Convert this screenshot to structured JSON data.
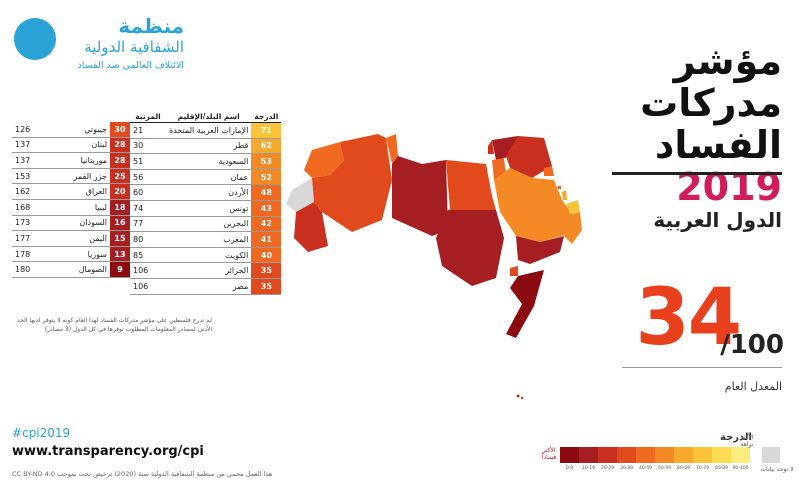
{
  "logo": {
    "line1": "منظمة",
    "line2": "الشفافية الدولية",
    "line3": "الائتلاف العالمي ضد الفساد"
  },
  "title": {
    "line1": "مؤشر",
    "line2": "مدركات",
    "line3_word": "الفساد",
    "year": "2019"
  },
  "region": "الدول العربية",
  "average": {
    "score": "34",
    "max": "/100",
    "label": "المعدل العام"
  },
  "table_right": {
    "headers": {
      "score": "الدرجة",
      "country": "اسم البلد/الإقليم",
      "rank": "المرتبة"
    },
    "rows": [
      {
        "score": "71",
        "country": "الإمارات العربية المتحدة",
        "rank": "21"
      },
      {
        "score": "62",
        "country": "قطر",
        "rank": "30"
      },
      {
        "score": "53",
        "country": "السعودية",
        "rank": "51"
      },
      {
        "score": "52",
        "country": "عمان",
        "rank": "56"
      },
      {
        "score": "48",
        "country": "الأردن",
        "rank": "60"
      },
      {
        "score": "43",
        "country": "تونس",
        "rank": "74"
      },
      {
        "score": "42",
        "country": "البحرين",
        "rank": "77"
      },
      {
        "score": "41",
        "country": "المغرب",
        "rank": "80"
      },
      {
        "score": "40",
        "country": "الكويت",
        "rank": "85"
      },
      {
        "score": "35",
        "country": "الجزائر",
        "rank": "106"
      },
      {
        "score": "35",
        "country": "مصر",
        "rank": "106"
      }
    ]
  },
  "table_left": {
    "rows": [
      {
        "score": "30",
        "country": "جيبوتي",
        "rank": "126"
      },
      {
        "score": "28",
        "country": "لبنان",
        "rank": "137"
      },
      {
        "score": "28",
        "country": "موريتانيا",
        "rank": "137"
      },
      {
        "score": "25",
        "country": "جزر القمر",
        "rank": "153"
      },
      {
        "score": "20",
        "country": "العراق",
        "rank": "162"
      },
      {
        "score": "18",
        "country": "ليبيا",
        "rank": "168"
      },
      {
        "score": "16",
        "country": "السودان",
        "rank": "173"
      },
      {
        "score": "15",
        "country": "اليمن",
        "rank": "177"
      },
      {
        "score": "13",
        "country": "سوريا",
        "rank": "178"
      },
      {
        "score": "9",
        "country": "الصومال",
        "rank": "180"
      }
    ]
  },
  "footnote": "لم تدرج فلسطين على مؤشر مدركات الفساد لهذا العام كونه لا يتوفر لديها الحد الأدنى لمصادر المعلومات المطلوب توفرها في كل الدول (3 مصادر)",
  "footer": {
    "hashtag": "#cpi2019",
    "url": "www.transparency.org/cpi",
    "license": "هذا العمل محمي من منظمة الشفافية الدولية سنة (2020) ترخيص تحت بموجب CC BY-ND 4.0"
  },
  "legend": {
    "title": "الدرجة",
    "most": "الأكثر فساداً",
    "least": "الأكثر نزاهة",
    "no_data": "لا توجد بيانات",
    "ranges": [
      "0-9",
      "10-19",
      "20-29",
      "30-39",
      "40-49",
      "50-59",
      "60-69",
      "70-79",
      "80-89",
      "90-100"
    ],
    "colors": [
      "#8b0a0f",
      "#a51e22",
      "#c9301f",
      "#e14a1c",
      "#ef6a20",
      "#f48a25",
      "#f7a92e",
      "#f9c43a",
      "#fbdc52",
      "#fbec7c"
    ],
    "no_data_color": "#d8d8d8"
  },
  "score_colors": {
    "71": "#f9c43a",
    "62": "#f7a92e",
    "53": "#f48a25",
    "52": "#f48a25",
    "48": "#ef6a20",
    "43": "#ef6a20",
    "42": "#ef6a20",
    "41": "#ef6a20",
    "40": "#ef6a20",
    "35": "#e14a1c",
    "30": "#e14a1c",
    "28": "#c9301f",
    "25": "#c9301f",
    "20": "#c9301f",
    "18": "#a51e22",
    "16": "#a51e22",
    "15": "#a51e22",
    "13": "#a51e22",
    "9": "#8b0a0f"
  }
}
